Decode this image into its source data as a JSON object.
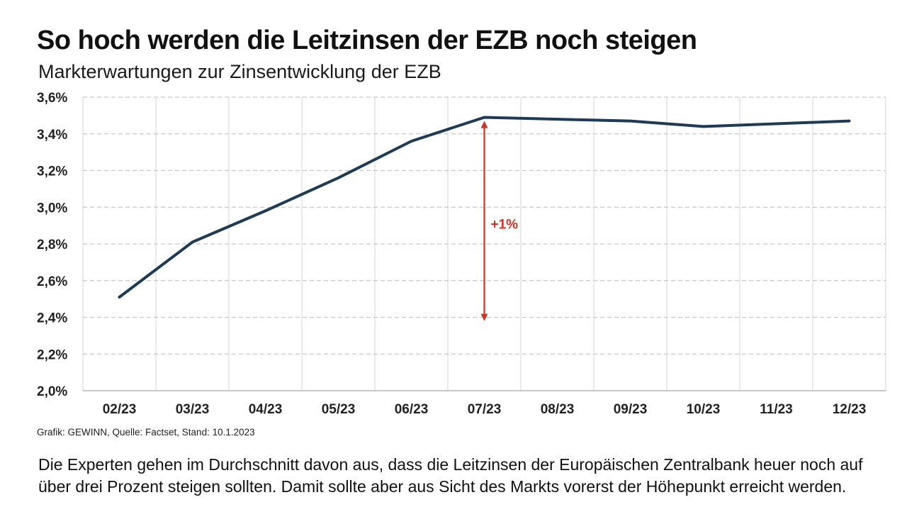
{
  "title": "So hoch werden die Leitzinsen der EZB noch steigen",
  "subtitle": "Markterwartungen zur Zinsentwicklung der EZB",
  "source": "Grafik: GEWINN, Quelle: Factset, Stand: 10.1.2023",
  "description": [
    "Die Experten gehen im Durchschnitt davon aus, dass die Leitzinsen der Europäischen Zentralbank heuer noch auf",
    "über drei Prozent steigen sollten. Damit sollte aber aus Sicht des Markts vorerst der Höhepunkt erreicht werden."
  ],
  "colors": {
    "line": "#1f3a55",
    "annotation": "#c0392b",
    "grid": "#c8c8c8",
    "axis": "#b5b5b5"
  },
  "chart_data": {
    "type": "line",
    "title": "So hoch werden die Leitzinsen der EZB noch steigen",
    "subtitle": "Markterwartungen zur Zinsentwicklung der EZB",
    "categories": [
      "02/23",
      "03/23",
      "04/23",
      "05/23",
      "06/23",
      "07/23",
      "08/23",
      "09/23",
      "10/23",
      "11/23",
      "12/23"
    ],
    "series": [
      {
        "values": [
          2.51,
          2.81,
          2.98,
          3.16,
          3.36,
          3.49,
          3.48,
          3.47,
          3.44,
          3.455,
          3.47
        ]
      }
    ],
    "ylim": [
      2.0,
      3.6
    ],
    "yticks": [
      2.0,
      2.2,
      2.4,
      2.6,
      2.8,
      3.0,
      3.2,
      3.4,
      3.6
    ],
    "ytick_labels": [
      "2,0%",
      "2,2%",
      "2,4%",
      "2,6%",
      "2,8%",
      "3,0%",
      "3,2%",
      "3,4%",
      "3,6%"
    ],
    "grid": "horizontal dashed, vertical solid",
    "annotation": {
      "text": "+1%",
      "category": "07/23",
      "y_from": 2.38,
      "y_to": 3.47
    }
  }
}
